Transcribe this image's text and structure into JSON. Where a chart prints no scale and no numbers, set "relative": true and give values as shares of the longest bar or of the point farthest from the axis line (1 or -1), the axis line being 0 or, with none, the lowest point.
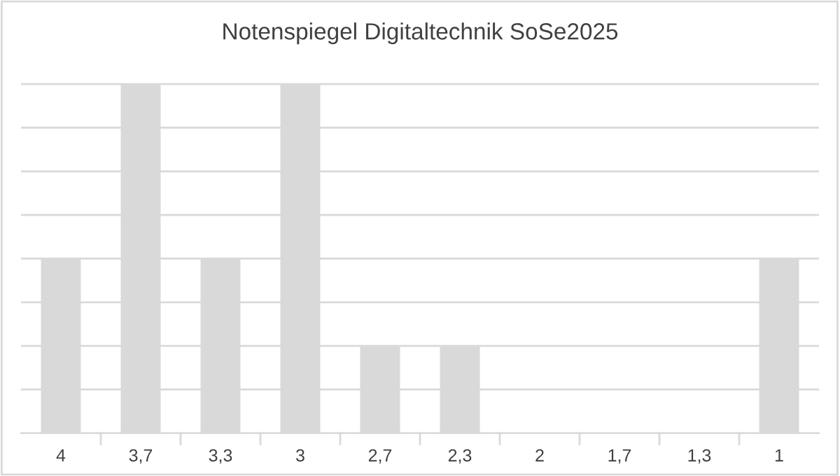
{
  "chart_data": {
    "type": "bar",
    "title": "Notenspiegel Digitaltechnik SoSe2025",
    "categories": [
      "4",
      "3,7",
      "3,3",
      "3",
      "2,7",
      "2,3",
      "2",
      "1,7",
      "1,3",
      "1"
    ],
    "values": [
      0.5,
      1,
      0.5,
      1,
      0.25,
      0.25,
      0,
      0,
      0,
      0.5
    ],
    "color": "#d9d9d9",
    "relative": true,
    "grid": "y"
  }
}
